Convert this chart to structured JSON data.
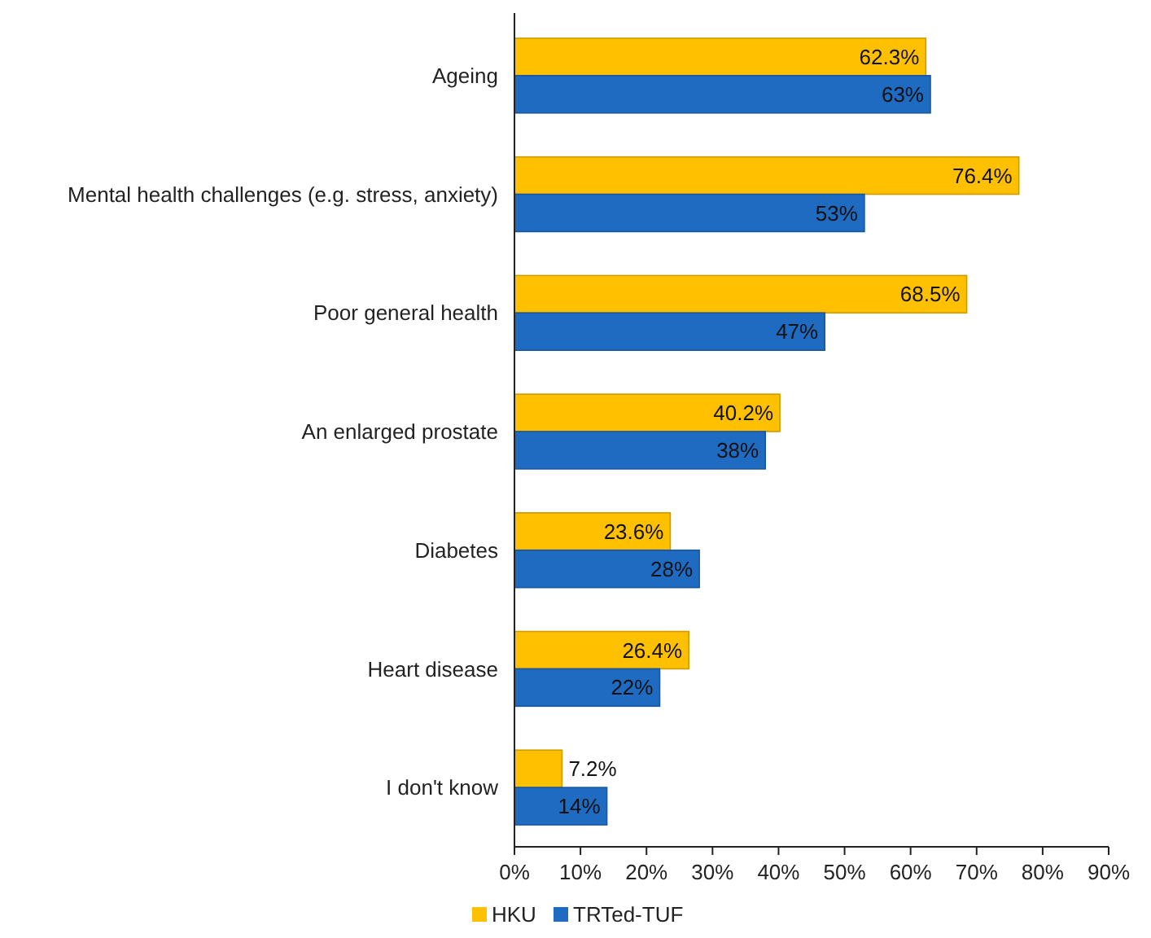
{
  "chart_data": {
    "type": "bar",
    "orientation": "horizontal",
    "categories": [
      "Ageing",
      "Mental health challenges (e.g. stress, anxiety)",
      "Poor general health",
      "An enlarged prostate",
      "Diabetes",
      "Heart disease",
      "I don't know"
    ],
    "series": [
      {
        "name": "HKU",
        "color": "#ffc000",
        "values": [
          62.3,
          76.4,
          68.5,
          40.2,
          23.6,
          26.4,
          7.2
        ],
        "value_labels": [
          "62.3%",
          "76.4%",
          "68.5%",
          "40.2%",
          "23.6%",
          "26.4%",
          "7.2%"
        ]
      },
      {
        "name": "TRTed-TUF",
        "color": "#1f6bc1",
        "values": [
          63,
          53,
          47,
          38,
          28,
          22,
          14
        ],
        "value_labels": [
          "63%",
          "53%",
          "47%",
          "38%",
          "28%",
          "22%",
          "14%"
        ]
      }
    ],
    "xlim": [
      0,
      90
    ],
    "xticks": [
      {
        "value": 0,
        "label": "0%"
      },
      {
        "value": 10,
        "label": "10%"
      },
      {
        "value": 20,
        "label": "20%"
      },
      {
        "value": 30,
        "label": "30%"
      },
      {
        "value": 40,
        "label": "40%"
      },
      {
        "value": 50,
        "label": "50%"
      },
      {
        "value": 60,
        "label": "60%"
      },
      {
        "value": 70,
        "label": "70%"
      },
      {
        "value": 80,
        "label": "80%"
      },
      {
        "value": 90,
        "label": "90%"
      }
    ],
    "grid": false,
    "legend": "bottom"
  }
}
